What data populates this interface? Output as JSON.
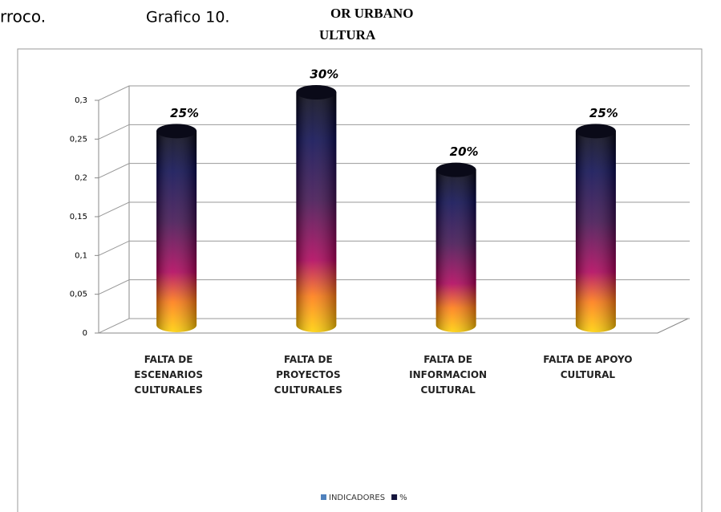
{
  "header": {
    "left": "rroco.",
    "caption": "Grafico 10.",
    "line1": "OR URBANO",
    "line2": "ULTURA"
  },
  "chart_data": {
    "type": "cylinder",
    "categories": [
      "FALTA DE\nESCENARIOS\nCULTURALES",
      "FALTA DE\nPROYECTOS\nCULTURALES",
      "FALTA DE\nINFORMACION\nCULTURAL",
      "FALTA DE APOYO\nCULTURAL"
    ],
    "series": [
      {
        "name": "INDICADORES",
        "color": "#4f81bd"
      },
      {
        "name": "%",
        "color": "#14143c",
        "values": [
          0.25,
          0.3,
          0.2,
          0.25
        ],
        "value_labels": [
          "25%",
          "30%",
          "20%",
          "25%"
        ]
      }
    ],
    "ylim": [
      0,
      0.3
    ],
    "yticks": [
      0,
      {
        "value": 0.05,
        "label": "0,05"
      },
      {
        "value": 0.1,
        "label": "0,1"
      },
      {
        "value": 0.15,
        "label": "0,15"
      },
      {
        "value": 0.2,
        "label": "0,2"
      },
      {
        "value": 0.25,
        "label": "0,25"
      },
      {
        "value": 0.3,
        "label": "0,3"
      }
    ],
    "grid": true
  }
}
